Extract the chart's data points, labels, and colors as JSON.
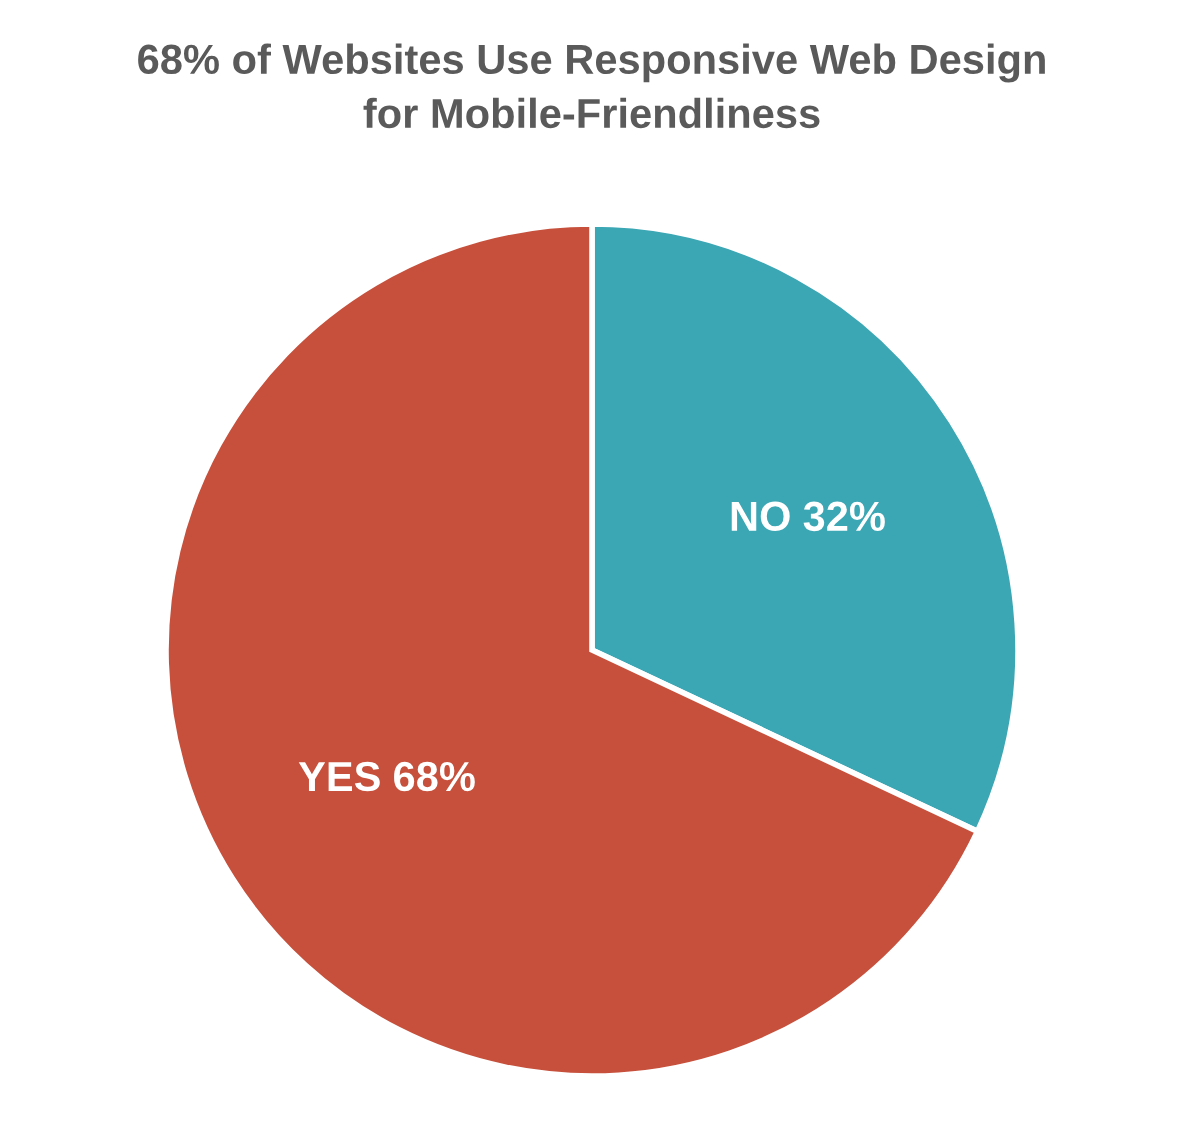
{
  "chart_data": {
    "type": "pie",
    "title": "68% of Websites Use Responsive Web Design\nfor Mobile-Friendliness",
    "categories": [
      "NO",
      "YES"
    ],
    "values": [
      32,
      68
    ],
    "colors": [
      "#3ba6b4",
      "#c6503b"
    ],
    "value_labels": [
      "32%",
      "68%"
    ]
  }
}
